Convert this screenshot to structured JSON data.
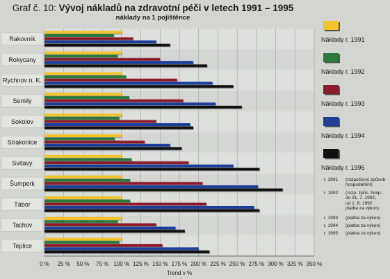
{
  "title": {
    "prefix": "Graf č. 10:",
    "main": "Vývoj nákladů na zdravotní péči v letech 1991 – 1995",
    "subtitle": "náklady na 1 pojištěnce"
  },
  "colors": {
    "1991": "#f2c42a",
    "1992": "#2b7a3a",
    "1993": "#8a1c2c",
    "1994": "#1e3f98",
    "1995": "#101010"
  },
  "legend": [
    {
      "key": "1991",
      "label": "Náklady r. 1991"
    },
    {
      "key": "1992",
      "label": "Náklady r. 1992"
    },
    {
      "key": "1993",
      "label": "Náklady r. 1993"
    },
    {
      "key": "1994",
      "label": "Náklady r. 1994"
    },
    {
      "key": "1995",
      "label": "Náklady r. 1995"
    }
  ],
  "notes": [
    {
      "year": "r. 1991",
      "desc": [
        "(rozpočtový způsob",
        "hospodaření)"
      ]
    },
    {
      "year": "r. 1992",
      "desc": [
        "(rozp. způs. hosp.",
        "do 31. 7. 1992,",
        "od 1. 8. 1992",
        "platba za výkon)"
      ]
    },
    {
      "year": "r. 1993",
      "desc": [
        "(platba za výkon)"
      ]
    },
    {
      "year": "r. 1994",
      "desc": [
        "(platba za výkon)"
      ]
    },
    {
      "year": "r. 1995",
      "desc": [
        "(platba za výkon)"
      ]
    }
  ],
  "chart_data": {
    "type": "bar",
    "orientation": "horizontal",
    "xlabel": "Trend v %",
    "xlim": [
      0,
      350
    ],
    "xticks": [
      "0 %",
      "25 %",
      "50 %",
      "75 %",
      "100 %",
      "125 %",
      "150 %",
      "175 %",
      "200 %",
      "225 %",
      "250 %",
      "275 %",
      "300 %",
      "325 %",
      "350 %"
    ],
    "grid": true,
    "legend_position": "right",
    "categories": [
      "Rakovník",
      "Rokycany",
      "Rychnov n. K.",
      "Semily",
      "Sokolov",
      "Strakonice",
      "Svitavy",
      "Šumperk",
      "Tábor",
      "Tachov",
      "Teplice"
    ],
    "series": [
      {
        "name": "Náklady r. 1991",
        "key": "1991",
        "values": [
          100,
          100,
          100,
          100,
          100,
          100,
          100,
          100,
          100,
          100,
          100
        ]
      },
      {
        "name": "Náklady r. 1992",
        "key": "1992",
        "values": [
          90,
          95,
          106,
          110,
          97,
          91,
          113,
          111,
          111,
          95,
          97
        ]
      },
      {
        "name": "Náklady r. 1993",
        "key": "1993",
        "values": [
          115,
          150,
          172,
          180,
          145,
          130,
          187,
          205,
          210,
          145,
          153
        ]
      },
      {
        "name": "Náklady r. 1994",
        "key": "1994",
        "values": [
          145,
          193,
          218,
          222,
          189,
          163,
          245,
          277,
          272,
          170,
          200
        ]
      },
      {
        "name": "Náklady r. 1995",
        "key": "1995",
        "values": [
          163,
          211,
          245,
          256,
          193,
          178,
          279,
          309,
          279,
          182,
          214
        ]
      }
    ]
  }
}
